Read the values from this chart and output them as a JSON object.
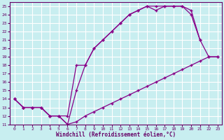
{
  "xlabel": "Windchill (Refroidissement éolien,°C)",
  "bg_color": "#c8eef0",
  "grid_color": "#ffffff",
  "line_color": "#880088",
  "xlim": [
    -0.5,
    23.5
  ],
  "ylim": [
    11,
    25.5
  ],
  "xticks": [
    0,
    1,
    2,
    3,
    4,
    5,
    6,
    7,
    8,
    9,
    10,
    11,
    12,
    13,
    14,
    15,
    16,
    17,
    18,
    19,
    20,
    21,
    22,
    23
  ],
  "yticks": [
    11,
    12,
    13,
    14,
    15,
    16,
    17,
    18,
    19,
    20,
    21,
    22,
    23,
    24,
    25
  ],
  "line1_x": [
    0,
    1,
    2,
    3,
    4,
    5,
    6,
    7,
    8,
    9,
    10,
    11,
    12,
    13,
    14,
    15,
    16,
    17,
    18,
    19,
    20,
    21,
    22,
    23
  ],
  "line1_y": [
    14,
    13,
    13,
    13,
    12,
    12,
    11,
    11.3,
    12,
    12.5,
    13,
    13.5,
    14,
    14.5,
    15,
    15.5,
    16,
    16.5,
    17,
    17.5,
    18,
    18.5,
    19,
    19
  ],
  "line2_x": [
    0,
    1,
    2,
    3,
    4,
    5,
    6,
    7,
    8,
    9,
    10,
    11,
    12,
    13,
    14,
    15,
    16,
    17,
    18,
    19,
    20,
    21,
    22,
    23
  ],
  "line2_y": [
    14,
    13,
    13,
    13,
    12,
    12,
    11,
    15,
    18,
    20,
    21,
    22,
    23,
    24,
    24.5,
    25,
    24.5,
    25,
    25,
    25,
    24,
    21,
    19,
    19
  ],
  "line3_x": [
    0,
    1,
    2,
    3,
    4,
    5,
    6,
    7,
    8,
    9,
    10,
    11,
    12,
    13,
    14,
    15,
    16,
    17,
    18,
    19,
    20,
    21
  ],
  "line3_y": [
    14,
    13,
    13,
    13,
    12,
    12,
    12,
    18,
    18,
    20,
    21,
    22,
    23,
    24,
    24.5,
    25,
    25,
    25,
    25,
    25,
    24.5,
    21
  ]
}
